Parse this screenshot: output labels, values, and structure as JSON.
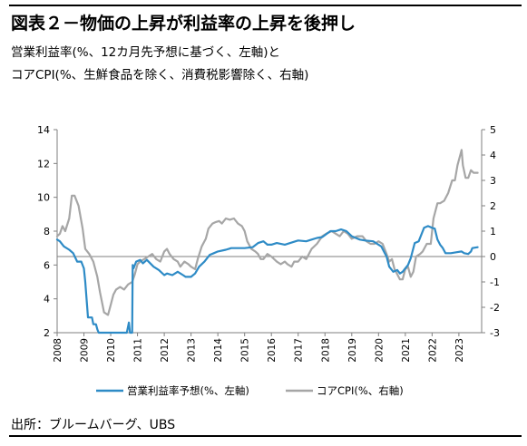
{
  "title": "図表２－物価の上昇が利益率の上昇を後押し",
  "subtitle_line1": "営業利益率(%、12カ月先予想に基づく、左軸)と",
  "subtitle_line2": "コアCPI(%、生鮮食品を除く、消費税影響除く、右軸)",
  "source": "出所：ブルームバーグ、UBS",
  "colors": {
    "series1": "#2e8bc6",
    "series2": "#a6a6a6",
    "grid": "#d9d9d9"
  },
  "chart_data": {
    "type": "line",
    "x_ticks": [
      "2008",
      "2009",
      "2010",
      "2011",
      "2012",
      "2013",
      "2014",
      "2015",
      "2016",
      "2017",
      "2018",
      "2019",
      "2020",
      "2021",
      "2022",
      "2023"
    ],
    "y_left": {
      "min": 2,
      "max": 14,
      "ticks": [
        "14",
        "12",
        "10",
        "8",
        "6",
        "4",
        "2"
      ]
    },
    "y_right": {
      "min": -3,
      "max": 5,
      "ticks": [
        "5",
        "4",
        "3",
        "2",
        "1",
        "0",
        "-1",
        "-2",
        "-3"
      ]
    },
    "grid": false,
    "legend_position": "bottom",
    "series": [
      {
        "name": "営業利益率予想(%、左軸)",
        "axis": "left",
        "color": "#2e8bc6",
        "points": [
          [
            2008.0,
            7.5
          ],
          [
            2008.1,
            7.4
          ],
          [
            2008.25,
            7.1
          ],
          [
            2008.45,
            6.9
          ],
          [
            2008.6,
            6.7
          ],
          [
            2008.75,
            6.2
          ],
          [
            2008.9,
            6.2
          ],
          [
            2009.0,
            5.8
          ],
          [
            2009.05,
            5.0
          ],
          [
            2009.15,
            2.9
          ],
          [
            2009.3,
            2.9
          ],
          [
            2009.35,
            2.5
          ],
          [
            2009.45,
            2.5
          ],
          [
            2009.5,
            2.2
          ],
          [
            2009.55,
            1.5
          ],
          [
            2009.6,
            1.5
          ],
          [
            2009.8,
            1.5
          ],
          [
            2010.0,
            1.5
          ],
          [
            2010.5,
            1.5
          ],
          [
            2010.6,
            2.0
          ],
          [
            2010.68,
            2.6
          ],
          [
            2010.72,
            1.5
          ],
          [
            2010.8,
            1.5
          ],
          [
            2010.82,
            6.0
          ],
          [
            2010.85,
            5.8
          ],
          [
            2010.95,
            6.2
          ],
          [
            2011.1,
            6.3
          ],
          [
            2011.2,
            6.1
          ],
          [
            2011.35,
            6.3
          ],
          [
            2011.6,
            5.9
          ],
          [
            2011.8,
            5.7
          ],
          [
            2012.0,
            5.4
          ],
          [
            2012.1,
            5.5
          ],
          [
            2012.3,
            5.4
          ],
          [
            2012.4,
            5.5
          ],
          [
            2012.5,
            5.6
          ],
          [
            2012.7,
            5.4
          ],
          [
            2012.8,
            5.3
          ],
          [
            2013.0,
            5.3
          ],
          [
            2013.15,
            5.5
          ],
          [
            2013.3,
            5.9
          ],
          [
            2013.5,
            6.2
          ],
          [
            2013.7,
            6.6
          ],
          [
            2013.85,
            6.7
          ],
          [
            2014.0,
            6.8
          ],
          [
            2014.3,
            6.9
          ],
          [
            2014.5,
            7.0
          ],
          [
            2015.0,
            7.0
          ],
          [
            2015.3,
            7.05
          ],
          [
            2015.5,
            7.3
          ],
          [
            2015.7,
            7.4
          ],
          [
            2015.85,
            7.2
          ],
          [
            2016.0,
            7.2
          ],
          [
            2016.2,
            7.3
          ],
          [
            2016.5,
            7.2
          ],
          [
            2016.7,
            7.3
          ],
          [
            2016.9,
            7.4
          ],
          [
            2017.0,
            7.45
          ],
          [
            2017.3,
            7.4
          ],
          [
            2017.5,
            7.5
          ],
          [
            2017.7,
            7.6
          ],
          [
            2017.9,
            7.65
          ],
          [
            2018.2,
            8.0
          ],
          [
            2018.4,
            8.0
          ],
          [
            2018.6,
            8.1
          ],
          [
            2018.8,
            8.0
          ],
          [
            2019.0,
            7.7
          ],
          [
            2019.3,
            7.5
          ],
          [
            2019.5,
            7.45
          ],
          [
            2019.8,
            7.4
          ],
          [
            2020.0,
            7.2
          ],
          [
            2020.1,
            7.1
          ],
          [
            2020.2,
            6.8
          ],
          [
            2020.3,
            6.5
          ],
          [
            2020.4,
            5.9
          ],
          [
            2020.55,
            5.6
          ],
          [
            2020.7,
            5.7
          ],
          [
            2020.8,
            5.5
          ],
          [
            2020.9,
            5.6
          ],
          [
            2021.0,
            5.8
          ],
          [
            2021.1,
            6.0
          ],
          [
            2021.2,
            6.4
          ],
          [
            2021.35,
            7.3
          ],
          [
            2021.5,
            7.4
          ],
          [
            2021.7,
            8.2
          ],
          [
            2021.85,
            8.3
          ],
          [
            2022.0,
            8.2
          ],
          [
            2022.1,
            8.15
          ],
          [
            2022.2,
            7.5
          ],
          [
            2022.3,
            7.2
          ],
          [
            2022.4,
            7.0
          ],
          [
            2022.5,
            6.7
          ],
          [
            2022.7,
            6.7
          ],
          [
            2022.9,
            6.75
          ],
          [
            2023.1,
            6.8
          ],
          [
            2023.2,
            6.7
          ],
          [
            2023.35,
            6.65
          ],
          [
            2023.45,
            6.8
          ],
          [
            2023.5,
            7.0
          ],
          [
            2023.7,
            7.05
          ]
        ]
      },
      {
        "name": "コアCPI(%、右軸)",
        "axis": "right",
        "color": "#a6a6a6",
        "points": [
          [
            2008.0,
            0.8
          ],
          [
            2008.1,
            0.9
          ],
          [
            2008.2,
            1.2
          ],
          [
            2008.3,
            1.0
          ],
          [
            2008.45,
            1.5
          ],
          [
            2008.55,
            2.4
          ],
          [
            2008.65,
            2.4
          ],
          [
            2008.8,
            2.0
          ],
          [
            2008.95,
            1.1
          ],
          [
            2009.05,
            0.3
          ],
          [
            2009.2,
            0.1
          ],
          [
            2009.35,
            -0.2
          ],
          [
            2009.5,
            -0.8
          ],
          [
            2009.6,
            -1.4
          ],
          [
            2009.75,
            -2.2
          ],
          [
            2009.9,
            -2.3
          ],
          [
            2010.0,
            -1.9
          ],
          [
            2010.1,
            -1.5
          ],
          [
            2010.2,
            -1.3
          ],
          [
            2010.35,
            -1.2
          ],
          [
            2010.5,
            -1.3
          ],
          [
            2010.65,
            -1.1
          ],
          [
            2010.8,
            -1.0
          ],
          [
            2010.9,
            -0.7
          ],
          [
            2011.0,
            -0.3
          ],
          [
            2011.1,
            -0.2
          ],
          [
            2011.25,
            -0.1
          ],
          [
            2011.4,
            0.0
          ],
          [
            2011.55,
            0.1
          ],
          [
            2011.7,
            -0.1
          ],
          [
            2011.85,
            -0.2
          ],
          [
            2012.0,
            0.2
          ],
          [
            2012.1,
            0.3
          ],
          [
            2012.2,
            0.1
          ],
          [
            2012.35,
            -0.1
          ],
          [
            2012.5,
            -0.2
          ],
          [
            2012.6,
            -0.4
          ],
          [
            2012.75,
            -0.2
          ],
          [
            2012.9,
            -0.3
          ],
          [
            2013.0,
            -0.4
          ],
          [
            2013.15,
            -0.5
          ],
          [
            2013.25,
            -0.1
          ],
          [
            2013.4,
            0.4
          ],
          [
            2013.55,
            0.7
          ],
          [
            2013.65,
            1.1
          ],
          [
            2013.8,
            1.3
          ],
          [
            2013.9,
            1.35
          ],
          [
            2014.05,
            1.4
          ],
          [
            2014.15,
            1.3
          ],
          [
            2014.3,
            1.5
          ],
          [
            2014.45,
            1.45
          ],
          [
            2014.6,
            1.5
          ],
          [
            2014.75,
            1.3
          ],
          [
            2014.9,
            1.2
          ],
          [
            2015.0,
            1.0
          ],
          [
            2015.1,
            0.6
          ],
          [
            2015.25,
            0.3
          ],
          [
            2015.4,
            0.2
          ],
          [
            2015.5,
            0.1
          ],
          [
            2015.6,
            -0.1
          ],
          [
            2015.7,
            -0.1
          ],
          [
            2015.85,
            0.1
          ],
          [
            2016.0,
            0.0
          ],
          [
            2016.2,
            -0.2
          ],
          [
            2016.35,
            -0.3
          ],
          [
            2016.5,
            -0.2
          ],
          [
            2016.6,
            -0.3
          ],
          [
            2016.75,
            -0.4
          ],
          [
            2016.85,
            -0.2
          ],
          [
            2017.0,
            -0.2
          ],
          [
            2017.15,
            0.0
          ],
          [
            2017.3,
            -0.1
          ],
          [
            2017.5,
            0.3
          ],
          [
            2017.7,
            0.5
          ],
          [
            2017.9,
            0.8
          ],
          [
            2018.05,
            0.9
          ],
          [
            2018.25,
            1.0
          ],
          [
            2018.4,
            0.9
          ],
          [
            2018.55,
            0.8
          ],
          [
            2018.7,
            1.0
          ],
          [
            2018.85,
            0.9
          ],
          [
            2019.0,
            0.7
          ],
          [
            2019.2,
            0.8
          ],
          [
            2019.4,
            0.8
          ],
          [
            2019.55,
            0.6
          ],
          [
            2019.7,
            0.5
          ],
          [
            2019.85,
            0.5
          ],
          [
            2020.0,
            0.6
          ],
          [
            2020.15,
            0.5
          ],
          [
            2020.3,
            0.1
          ],
          [
            2020.4,
            -0.2
          ],
          [
            2020.5,
            -0.1
          ],
          [
            2020.6,
            -0.5
          ],
          [
            2020.7,
            -0.7
          ],
          [
            2020.8,
            -0.9
          ],
          [
            2020.9,
            -0.9
          ],
          [
            2021.0,
            -0.5
          ],
          [
            2021.1,
            -0.4
          ],
          [
            2021.2,
            -0.8
          ],
          [
            2021.3,
            -0.6
          ],
          [
            2021.4,
            0.0
          ],
          [
            2021.55,
            0.1
          ],
          [
            2021.65,
            0.2
          ],
          [
            2021.8,
            0.5
          ],
          [
            2021.95,
            0.5
          ],
          [
            2022.05,
            1.5
          ],
          [
            2022.2,
            2.1
          ],
          [
            2022.3,
            2.1
          ],
          [
            2022.45,
            2.2
          ],
          [
            2022.6,
            2.5
          ],
          [
            2022.75,
            3.0
          ],
          [
            2022.85,
            3.0
          ],
          [
            2022.95,
            3.6
          ],
          [
            2023.05,
            4.0
          ],
          [
            2023.1,
            4.2
          ],
          [
            2023.15,
            3.6
          ],
          [
            2023.25,
            3.1
          ],
          [
            2023.35,
            3.1
          ],
          [
            2023.45,
            3.4
          ],
          [
            2023.55,
            3.3
          ],
          [
            2023.7,
            3.3
          ]
        ]
      }
    ],
    "legend": [
      {
        "label": "営業利益率予想(%、左軸)",
        "color": "#2e8bc6"
      },
      {
        "label": "コアCPI(%、右軸)",
        "color": "#a6a6a6"
      }
    ]
  }
}
